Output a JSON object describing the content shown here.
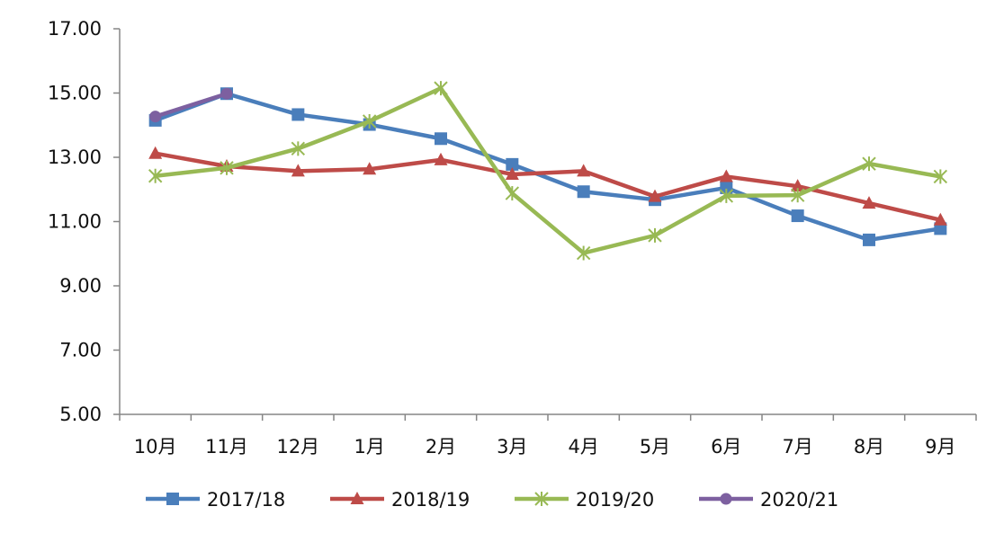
{
  "chart_data": {
    "type": "line",
    "title": "",
    "xlabel": "",
    "ylabel": "",
    "categories": [
      "10月",
      "11月",
      "12月",
      "1月",
      "2月",
      "3月",
      "4月",
      "5月",
      "6月",
      "7月",
      "8月",
      "9月"
    ],
    "ylim": [
      5,
      17
    ],
    "yticks": [
      "5.00",
      "7.00",
      "9.00",
      "11.00",
      "13.00",
      "15.00",
      "17.00"
    ],
    "grid": false,
    "legend_position": "bottom",
    "series": [
      {
        "name": "2017/18",
        "color": "#4a7ebb",
        "marker": "square",
        "values": [
          14.15,
          14.98,
          14.33,
          14.02,
          13.58,
          12.78,
          11.93,
          11.68,
          12.05,
          11.18,
          10.43,
          10.78
        ]
      },
      {
        "name": "2018/19",
        "color": "#be4b48",
        "marker": "triangle",
        "values": [
          13.12,
          12.72,
          12.57,
          12.63,
          12.92,
          12.47,
          12.57,
          11.78,
          12.4,
          12.1,
          11.57,
          11.05
        ]
      },
      {
        "name": "2019/20",
        "color": "#98b954",
        "marker": "star",
        "values": [
          12.42,
          12.67,
          13.27,
          14.12,
          15.15,
          11.88,
          10.02,
          10.57,
          11.8,
          11.82,
          12.8,
          12.4
        ]
      },
      {
        "name": "2020/21",
        "color": "#7d60a0",
        "marker": "circle",
        "values": [
          14.27,
          14.98,
          null,
          null,
          null,
          null,
          null,
          null,
          null,
          null,
          null,
          null
        ]
      }
    ]
  }
}
